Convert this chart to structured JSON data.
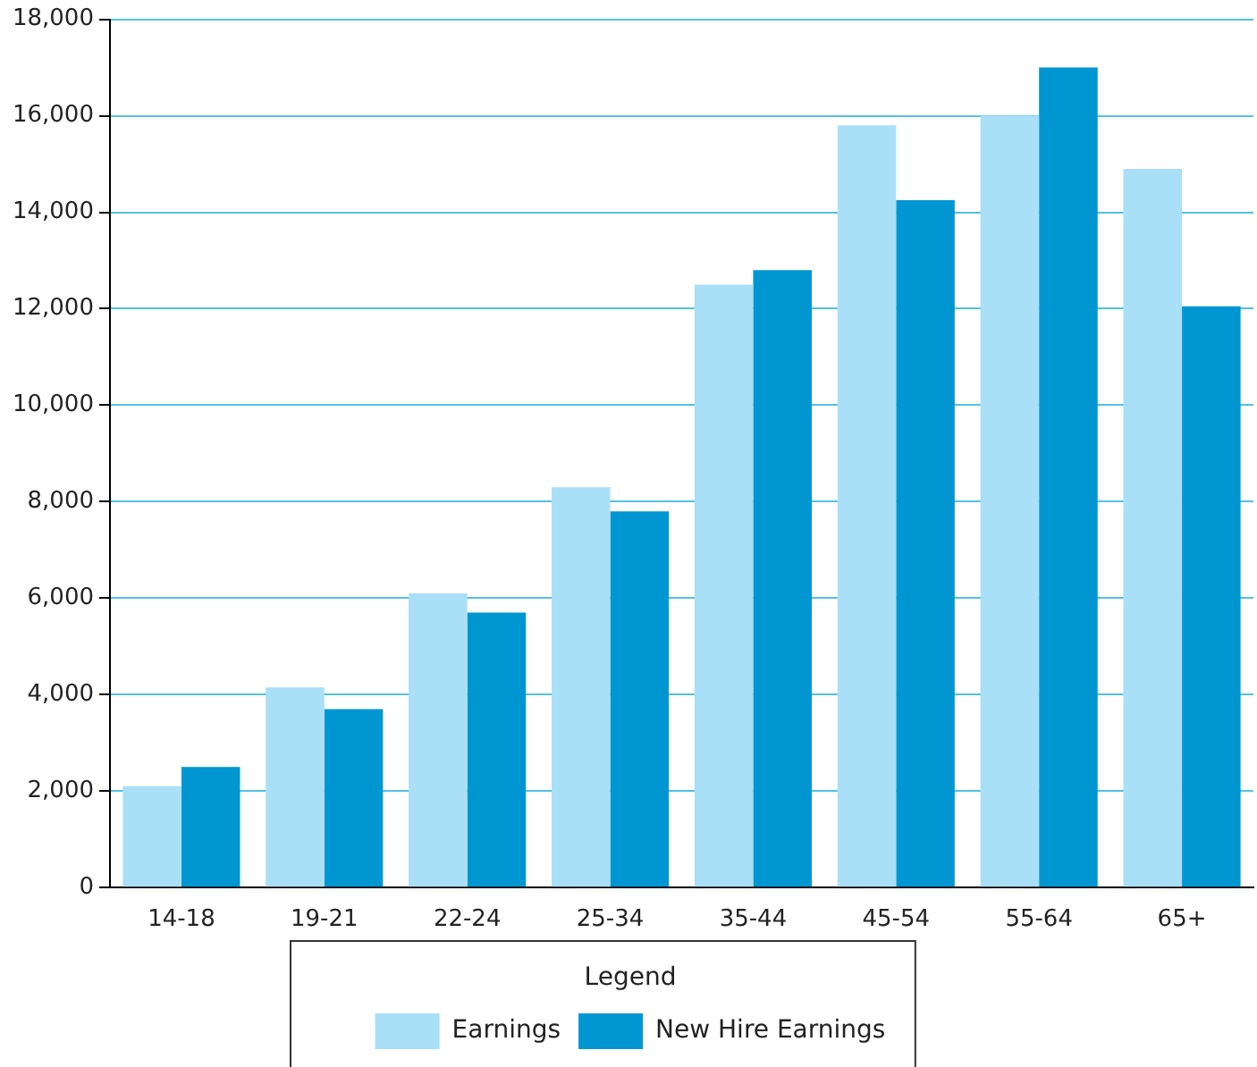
{
  "chart_data": {
    "type": "bar",
    "categories": [
      "14-18",
      "19-21",
      "22-24",
      "25-34",
      "35-44",
      "45-54",
      "55-64",
      "65+"
    ],
    "series": [
      {
        "name": "Earnings",
        "color": "#aadff8",
        "values": [
          2100,
          4150,
          6100,
          8300,
          12500,
          15800,
          16000,
          14900
        ]
      },
      {
        "name": "New Hire Earnings",
        "color": "#0096d2",
        "values": [
          2500,
          3700,
          5700,
          7800,
          12800,
          14250,
          17000,
          12050
        ]
      }
    ],
    "ylim": [
      0,
      18000
    ],
    "yticks": [
      0,
      {
        "value": 2000,
        "label": "2,000"
      },
      {
        "value": 4000,
        "label": "4,000"
      },
      {
        "value": 6000,
        "label": "6,000"
      },
      {
        "value": 8000,
        "label": "8,000"
      },
      {
        "value": 10000,
        "label": "10,000"
      },
      {
        "value": 12000,
        "label": "12,000"
      },
      {
        "value": 14000,
        "label": "14,000"
      },
      {
        "value": 16000,
        "label": "16,000"
      },
      {
        "value": 18000,
        "label": "18,000"
      }
    ],
    "grid": "y",
    "legend": "bottom",
    "legend_title": "Legend"
  }
}
